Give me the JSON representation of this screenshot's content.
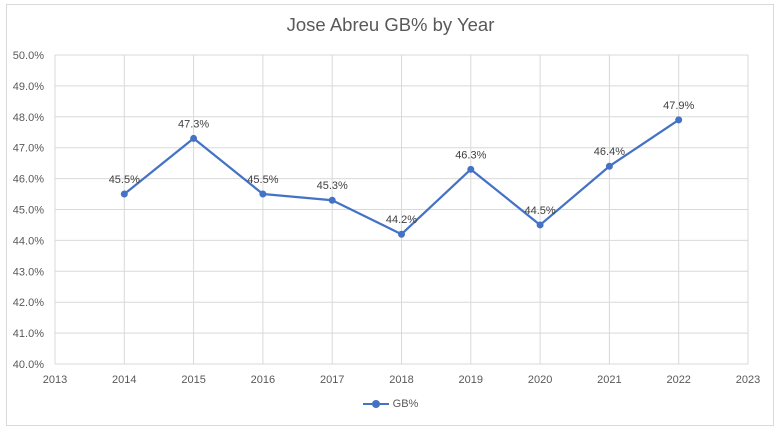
{
  "chart_data": {
    "type": "line",
    "title": "Jose Abreu GB% by Year",
    "xlabel": "",
    "ylabel": "",
    "x_ticks": [
      "2013",
      "2014",
      "2015",
      "2016",
      "2017",
      "2018",
      "2019",
      "2020",
      "2021",
      "2022",
      "2023"
    ],
    "xlim": [
      2013,
      2023
    ],
    "ylim": [
      40.0,
      50.0
    ],
    "y_ticks": [
      "40.0%",
      "41.0%",
      "42.0%",
      "43.0%",
      "44.0%",
      "45.0%",
      "46.0%",
      "47.0%",
      "48.0%",
      "49.0%",
      "50.0%"
    ],
    "grid": true,
    "legend_position": "bottom",
    "series": [
      {
        "name": "GB%",
        "color": "#4472c4",
        "x": [
          2014,
          2015,
          2016,
          2017,
          2018,
          2019,
          2020,
          2021,
          2022
        ],
        "values": [
          45.5,
          47.3,
          45.5,
          45.3,
          44.2,
          46.3,
          44.5,
          46.4,
          47.9
        ],
        "labels": [
          "45.5%",
          "47.3%",
          "45.5%",
          "45.3%",
          "44.2%",
          "46.3%",
          "44.5%",
          "46.4%",
          "47.9%"
        ]
      }
    ]
  }
}
